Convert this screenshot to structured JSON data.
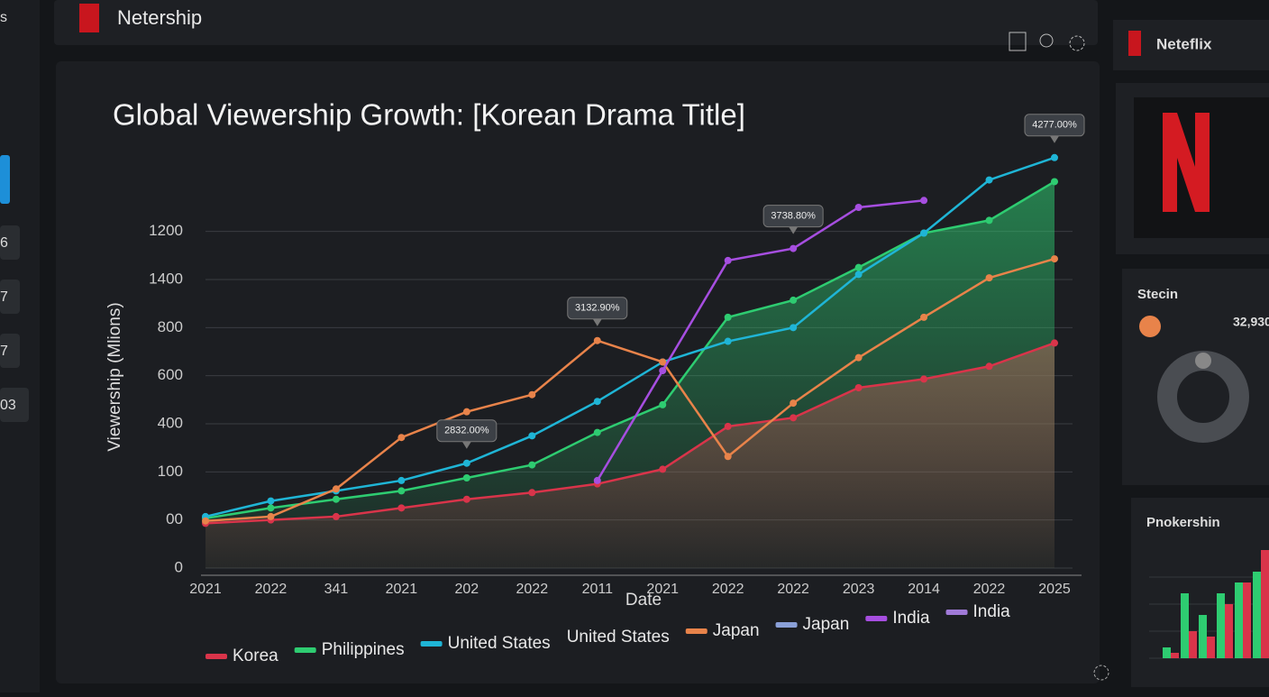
{
  "app": {
    "name": "Netership",
    "side_brand": "Neteflix",
    "sidebar_items": [
      "s",
      "6",
      "7",
      "7",
      "03"
    ],
    "stats_title": "Stecin",
    "stats_value": "32,930"
  },
  "chart_data": [
    {
      "type": "line",
      "title": "Global Viewership Growth: [Korean Drama Title]",
      "x_label": "Date",
      "y_label": "Viewership (Mlions)",
      "categories": [
        "2021",
        "2022",
        "341",
        "2021",
        "202",
        "2022",
        "2011",
        "2021",
        "2022",
        "2022",
        "2023",
        "2014",
        "2022",
        "2025"
      ],
      "ylim": [
        0,
        1800
      ],
      "yticks": [
        0,
        {
          "value": 200,
          "label": "00"
        },
        {
          "value": 400,
          "label": "100"
        },
        {
          "value": 600,
          "label": "400"
        },
        {
          "value": 800,
          "label": "600"
        },
        {
          "value": 1000,
          "label": "800"
        },
        {
          "value": 1200,
          "label": "1400"
        },
        {
          "value": 1400,
          "label": "1200"
        }
      ],
      "grid": true,
      "series": [
        {
          "name": "Korea",
          "color": "#d9344a",
          "area": true,
          "values": [
            186,
            200,
            214,
            250,
            286,
            314,
            350,
            411,
            589,
            625,
            750,
            786,
            839,
            936
          ]
        },
        {
          "name": "Philippines",
          "color": "#2ecc71",
          "area": true,
          "values": [
            207,
            250,
            286,
            321,
            375,
            429,
            564,
            679,
            1043,
            1114,
            1250,
            1393,
            1446,
            1607
          ]
        },
        {
          "name": "United States",
          "color": "#1fb5d6",
          "values": [
            214,
            279,
            321,
            364,
            436,
            550,
            693,
            857,
            943,
            1000,
            1221,
            1393,
            1614,
            1707
          ]
        },
        {
          "name": "Japan",
          "color": "#e8834a",
          "values": [
            196,
            214,
            329,
            543,
            650,
            721,
            946,
            857,
            464,
            686,
            875,
            1043,
            1207,
            1286
          ]
        },
        {
          "name": "India",
          "color": "#a64ee0",
          "values": [
            null,
            null,
            null,
            null,
            null,
            null,
            364,
            821,
            1279,
            1329,
            1500,
            1529,
            null,
            null
          ]
        }
      ],
      "legend_extra": [
        "United States",
        "Japan",
        "India"
      ],
      "annotations": [
        "2832.00%",
        "3132.90%",
        "3738.80%",
        "4277.00%"
      ]
    },
    {
      "type": "bar",
      "title": "Pnokershin",
      "categories": [
        null,
        null,
        null,
        null,
        null,
        null
      ],
      "ylim": [
        0,
        100
      ],
      "series": [
        {
          "name": null,
          "color": "#2ecc71",
          "values": [
            10,
            60,
            40,
            60,
            70,
            80
          ]
        },
        {
          "name": null,
          "color": "#d9344a",
          "values": [
            5,
            25,
            20,
            50,
            70,
            100
          ]
        }
      ]
    }
  ]
}
